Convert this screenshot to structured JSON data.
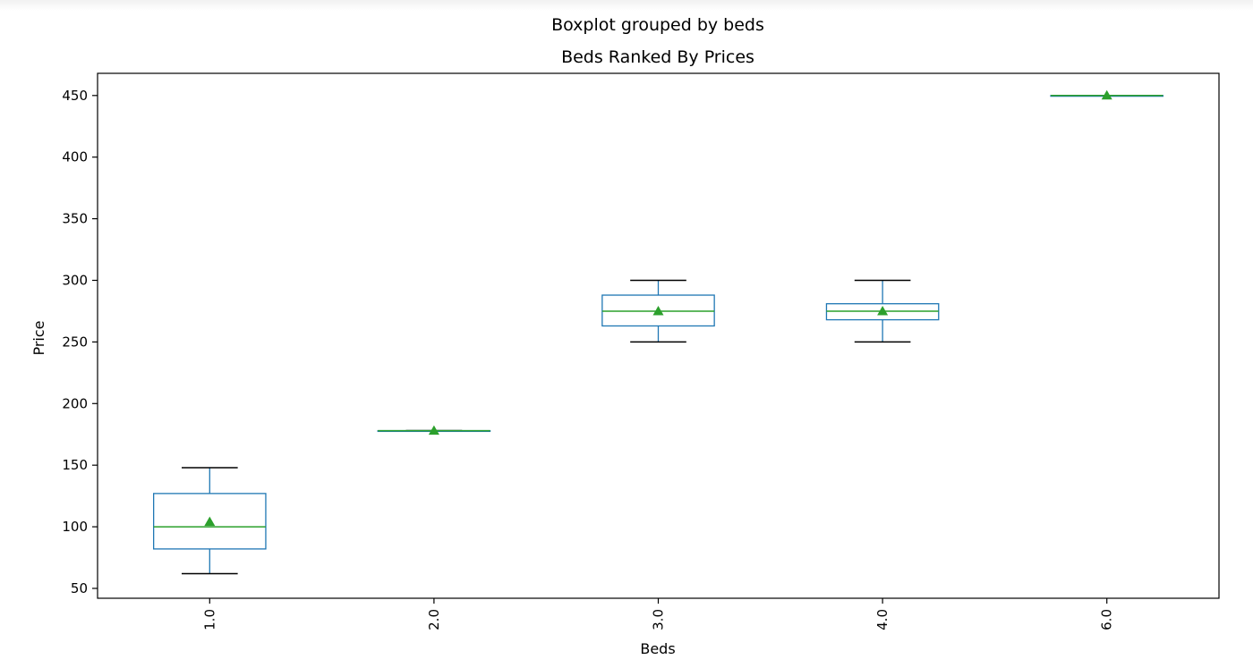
{
  "chart_data": {
    "type": "boxplot",
    "suptitle": "Boxplot grouped by beds",
    "title": "Beds Ranked By Prices",
    "xlabel": "Beds",
    "ylabel": "Price",
    "categories": [
      "1.0",
      "2.0",
      "3.0",
      "4.0",
      "6.0"
    ],
    "ylim": [
      42,
      468
    ],
    "yticks": [
      50,
      100,
      150,
      200,
      250,
      300,
      350,
      400,
      450
    ],
    "grid": false,
    "boxes": [
      {
        "category": "1.0",
        "whisker_low": 62,
        "q1": 82,
        "median": 100,
        "q3": 127,
        "whisker_high": 148,
        "mean": 104
      },
      {
        "category": "2.0",
        "whisker_low": 178,
        "q1": 178,
        "median": 178,
        "q3": 178,
        "whisker_high": 178,
        "mean": 178
      },
      {
        "category": "3.0",
        "whisker_low": 250,
        "q1": 263,
        "median": 275,
        "q3": 288,
        "whisker_high": 300,
        "mean": 275
      },
      {
        "category": "4.0",
        "whisker_low": 250,
        "q1": 268,
        "median": 275,
        "q3": 281,
        "whisker_high": 300,
        "mean": 275
      },
      {
        "category": "6.0",
        "whisker_low": 450,
        "q1": 450,
        "median": 450,
        "q3": 450,
        "whisker_high": 450,
        "mean": 450
      }
    ],
    "colors": {
      "box": "#1f77b4",
      "median": "#2ca02c",
      "mean_marker": "#2ca02c",
      "cap": "#000000",
      "axes": "#000000"
    }
  }
}
